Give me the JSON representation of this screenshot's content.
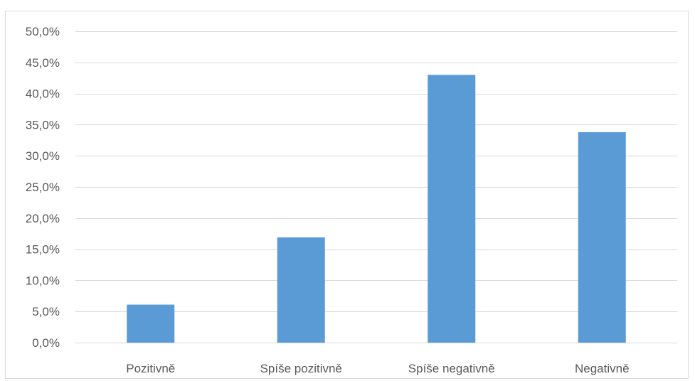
{
  "chart_data": {
    "type": "bar",
    "title": "",
    "xlabel": "",
    "ylabel": "",
    "categories": [
      "Pozitivně",
      "Spíše pozitivně",
      "Spíše negativně",
      "Negativně"
    ],
    "values": [
      6.1,
      16.9,
      43.0,
      33.8
    ],
    "ylim": [
      0,
      50
    ],
    "yticks": [
      0,
      5,
      10,
      15,
      20,
      25,
      30,
      35,
      40,
      45,
      50
    ],
    "ytick_labels": [
      "0,0%",
      "5,0%",
      "10,0%",
      "15,0%",
      "20,0%",
      "25,0%",
      "30,0%",
      "35,0%",
      "40,0%",
      "45,0%",
      "50,0%"
    ],
    "grid": true,
    "legend": "none",
    "bar_color": "#5b9bd5",
    "grid_color": "#d9d9d9"
  }
}
